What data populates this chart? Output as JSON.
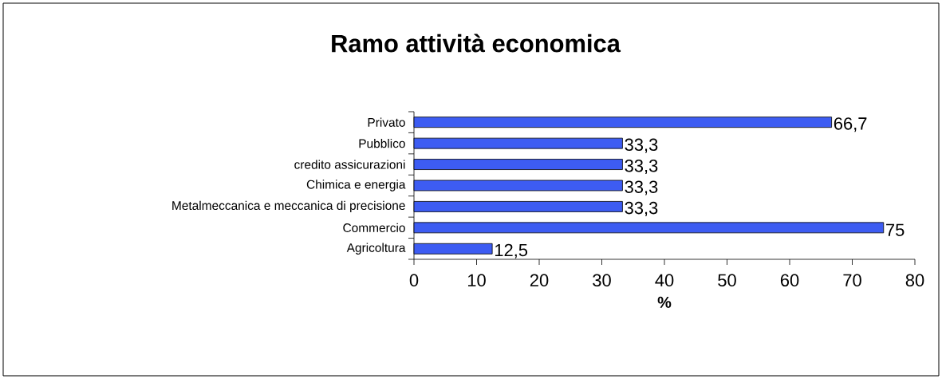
{
  "chart_data": {
    "type": "bar",
    "orientation": "horizontal",
    "title": "Ramo attività economica",
    "xlabel": "%",
    "categories": [
      "Privato",
      "Pubblico",
      "credito assicurazioni",
      "Chimica e energia",
      "Metalmeccanica e meccanica di precisione",
      "Commercio",
      "Agricoltura"
    ],
    "values": [
      66.7,
      33.3,
      33.3,
      33.3,
      33.3,
      75,
      12.5
    ],
    "value_labels": [
      "66,7",
      "33,3",
      "33,3",
      "33,3",
      "33,3",
      "75",
      "12,5"
    ],
    "color": "#3d5cf2",
    "xlim": [
      0,
      80
    ],
    "xticks": [
      0,
      10,
      20,
      30,
      40,
      50,
      60,
      70,
      80
    ]
  }
}
